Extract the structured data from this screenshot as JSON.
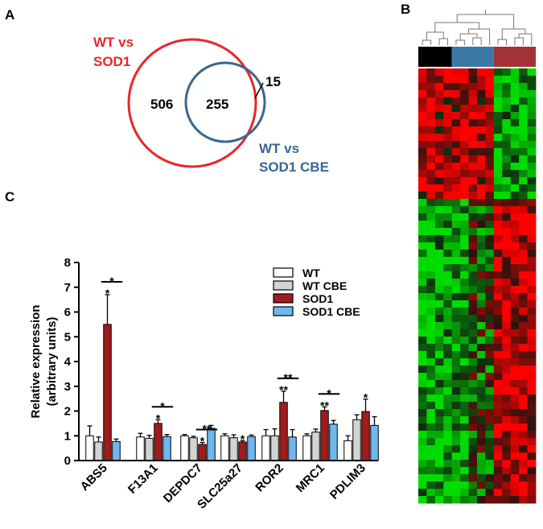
{
  "panels": {
    "a": "A",
    "b": "B",
    "c": "C"
  },
  "venn": {
    "set1_label_line1": "WT vs",
    "set1_label_line2": "SOD1",
    "set2_label_line1": "WT vs",
    "set2_label_line2": "SOD1 CBE",
    "only_set1": "506",
    "overlap": "255",
    "only_set2": "15",
    "set1_color": "#e8262a",
    "set2_color": "#3a6690"
  },
  "heatmap": {
    "group_colors": [
      "#000000",
      "#3b78a6",
      "#a33336"
    ],
    "high_color": "#ff0000",
    "low_color": "#00dd00",
    "mid_color": "#000000"
  },
  "chart_data": {
    "type": "bar",
    "ylabel_line1": "Relative expression",
    "ylabel_line2": "(arbitrary units)",
    "ylim": [
      0,
      8
    ],
    "yticks": [
      "0",
      "1",
      "2",
      "3",
      "4",
      "5",
      "6",
      "7",
      "8"
    ],
    "categories": [
      "ABS5",
      "F13A1",
      "DEPDC7",
      "SLC25a27",
      "ROR2",
      "MRC1",
      "PDLIM3"
    ],
    "series": [
      {
        "name": "WT",
        "color": "#ffffff",
        "values": [
          1.0,
          0.95,
          1.0,
          1.0,
          1.0,
          1.0,
          0.8
        ],
        "errors": [
          0.4,
          0.15,
          0.05,
          0.08,
          0.25,
          0.08,
          0.2
        ]
      },
      {
        "name": "WT CBE",
        "color": "#d3d3d3",
        "values": [
          0.75,
          0.9,
          0.92,
          0.92,
          1.0,
          1.15,
          1.65
        ],
        "errors": [
          0.2,
          0.12,
          0.06,
          0.12,
          0.28,
          0.12,
          0.2
        ]
      },
      {
        "name": "SOD1",
        "color": "#a01c1c",
        "values": [
          5.5,
          1.5,
          0.65,
          0.75,
          2.35,
          2.02,
          1.98
        ],
        "errors": [
          1.2,
          0.15,
          0.08,
          0.06,
          0.45,
          0.15,
          0.5
        ]
      },
      {
        "name": "SOD1 CBE",
        "color": "#6fb7ef",
        "values": [
          0.77,
          0.97,
          1.3,
          0.97,
          0.95,
          1.47,
          1.42
        ],
        "errors": [
          0.1,
          0.08,
          0.12,
          0.06,
          0.3,
          0.15,
          0.35
        ]
      }
    ],
    "annotations": [
      {
        "category": "ABS5",
        "series": "SOD1",
        "text": "*"
      },
      {
        "category": "ABS5",
        "bracket": [
          "SOD1",
          "SOD1 CBE"
        ],
        "text": "*"
      },
      {
        "category": "F13A1",
        "series": "SOD1",
        "text": "*"
      },
      {
        "category": "F13A1",
        "bracket": [
          "SOD1",
          "SOD1 CBE"
        ],
        "text": "*"
      },
      {
        "category": "DEPDC7",
        "series": "SOD1",
        "text": "*"
      },
      {
        "category": "DEPDC7",
        "bracket": [
          "SOD1",
          "SOD1 CBE"
        ],
        "text": "**"
      },
      {
        "category": "SLC25a27",
        "series": "SOD1",
        "text": "*"
      },
      {
        "category": "ROR2",
        "series": "SOD1",
        "text": "**"
      },
      {
        "category": "ROR2",
        "bracket": [
          "SOD1",
          "SOD1 CBE"
        ],
        "text": "**"
      },
      {
        "category": "MRC1",
        "series": "SOD1",
        "text": "**"
      },
      {
        "category": "MRC1",
        "bracket": [
          "SOD1",
          "SOD1 CBE"
        ],
        "text": "*"
      },
      {
        "category": "PDLIM3",
        "series": "SOD1",
        "text": "*"
      }
    ]
  }
}
